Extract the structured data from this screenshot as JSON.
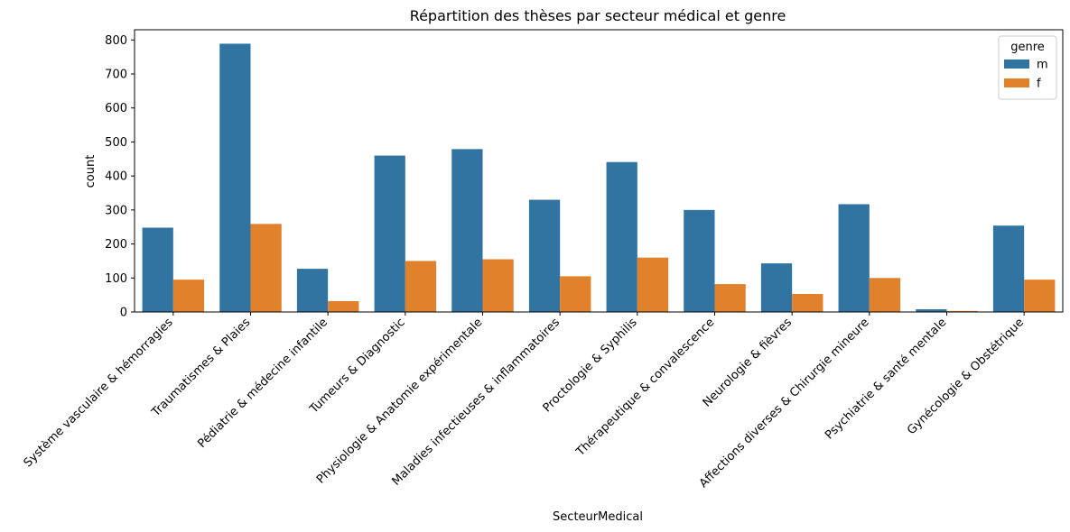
{
  "chart_data": {
    "type": "bar",
    "title": "Répartition des thèses par secteur médical et genre",
    "xlabel": "SecteurMedical",
    "ylabel": "count",
    "ylim": [
      0,
      830
    ],
    "yticks": [
      0,
      100,
      200,
      300,
      400,
      500,
      600,
      700,
      800
    ],
    "legend_title": "genre",
    "legend_position": "top-right",
    "grid": false,
    "categories": [
      "Système vasculaire & hémorragies",
      "Traumatismes & Plaies",
      "Pédiatrie & médecine infantile",
      "Tumeurs & Diagnostic",
      "Physiologie & Anatomie expérimentale",
      "Maladies infectieuses & inflammatoires",
      "Proctologie & Syphilis",
      "Thérapeutique & convalescence",
      "Neurologie & fièvres",
      "Affections diverses & Chirurgie mineure",
      "Psychiatrie & santé mentale",
      "Gynécologie & Obstétrique"
    ],
    "series": [
      {
        "name": "m",
        "color": "#3274a1",
        "values": [
          248,
          789,
          127,
          460,
          479,
          330,
          441,
          300,
          143,
          317,
          8,
          254
        ]
      },
      {
        "name": "f",
        "color": "#e1812c",
        "values": [
          95,
          259,
          32,
          150,
          155,
          105,
          160,
          82,
          53,
          100,
          3,
          95
        ]
      }
    ]
  }
}
